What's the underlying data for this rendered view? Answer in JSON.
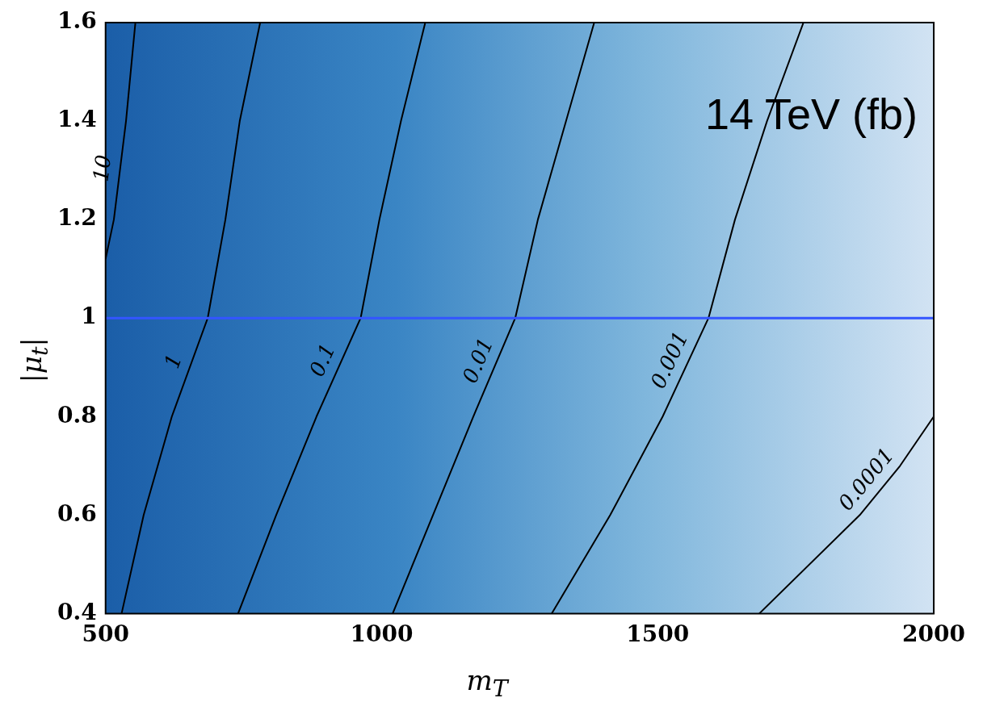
{
  "chart_data": {
    "type": "line",
    "xlabel": "m$_{T}$",
    "ylabel": "|μ$_{t}$|",
    "annotations": [
      "14 TeV (fb)"
    ],
    "xlim": [
      500,
      2000
    ],
    "ylim": [
      0.4,
      1.6
    ],
    "xticks": [
      500,
      1000,
      1500,
      2000
    ],
    "yticks": [
      0.4,
      0.6,
      0.8,
      1,
      1.2,
      1.4,
      1.6
    ],
    "grid": false,
    "legend": false,
    "marker": "none",
    "line_style": "solid",
    "ref_lines": [
      {
        "axis": "y",
        "value": 1,
        "color": "#3355ff"
      }
    ],
    "series": [
      {
        "name": "10",
        "color": "#000000",
        "x": [
          554,
          537,
          515,
          500
        ],
        "values": [
          1.6,
          1.4,
          1.2,
          1.12
        ]
      },
      {
        "name": "1",
        "color": "#000000",
        "x": [
          780,
          743,
          717,
          685,
          620,
          569,
          529
        ],
        "values": [
          1.6,
          1.4,
          1.2,
          1,
          0.8,
          0.6,
          0.4
        ]
      },
      {
        "name": "0.1",
        "color": "#000000",
        "x": [
          1079,
          1035,
          996,
          962,
          882,
          809,
          740
        ],
        "values": [
          1.6,
          1.4,
          1.2,
          1,
          0.8,
          0.6,
          0.4
        ]
      },
      {
        "name": "0.01",
        "color": "#000000",
        "x": [
          1385,
          1334,
          1283,
          1242,
          1166,
          1093,
          1020
        ],
        "values": [
          1.6,
          1.4,
          1.2,
          1,
          0.8,
          0.6,
          0.4
        ]
      },
      {
        "name": "0.001",
        "color": "#000000",
        "x": [
          1764,
          1698,
          1640,
          1592,
          1509,
          1414,
          1308
        ],
        "values": [
          1.6,
          1.4,
          1.2,
          1,
          0.8,
          0.6,
          0.4
        ]
      },
      {
        "name": "0.0001",
        "color": "#000000",
        "x": [
          2000,
          1939,
          1866,
          1684
        ],
        "values": [
          0.8,
          0.7,
          0.6,
          0.4
        ]
      }
    ]
  }
}
